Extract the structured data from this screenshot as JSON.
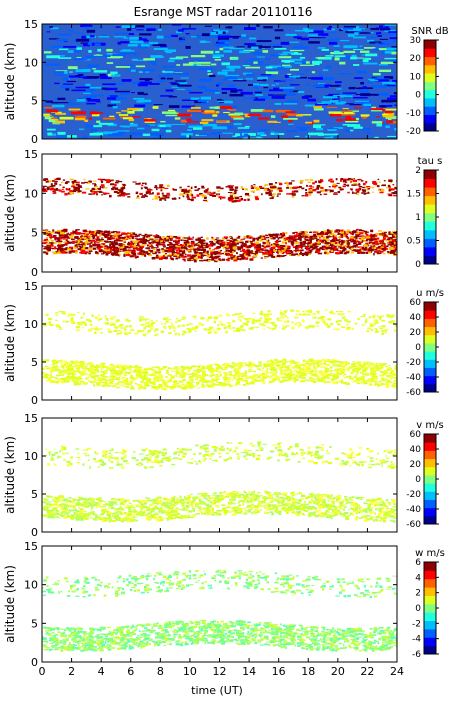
{
  "chart_data": {
    "type": "heatmap",
    "title": "Esrange MST radar 20110116",
    "xlabel": "time (UT)",
    "x_ticks": [
      0,
      2,
      4,
      6,
      8,
      10,
      12,
      14,
      16,
      18,
      20,
      22,
      24
    ],
    "xlim": [
      0,
      24
    ],
    "panels": [
      {
        "ylabel": "altitude (km)",
        "ylim": [
          0,
          15
        ],
        "y_ticks": [
          0,
          5,
          10,
          15
        ],
        "colorbar_label": "SNR dB",
        "colorbar_ticks": [
          -20,
          -10,
          0,
          10,
          20,
          30
        ],
        "colorbar_range": [
          -20,
          30
        ],
        "description_values": {
          "echo_top_km": 15,
          "strong_layer_km": [
            2.5,
            4.0
          ],
          "strong_layer_peak_dB": 25,
          "cirrus_layer_km": [
            9.5,
            11.5
          ],
          "background_dB": -10
        }
      },
      {
        "ylabel": "altitude (km)",
        "ylim": [
          0,
          15
        ],
        "y_ticks": [
          0,
          5,
          10,
          15
        ],
        "colorbar_label": "tau s",
        "colorbar_ticks": [
          0,
          0.5,
          1,
          1.5,
          2
        ],
        "colorbar_range": [
          0,
          2
        ],
        "description_values": {
          "upper_layer_km": [
            9.5,
            11.5
          ],
          "lower_layer_km": [
            2.0,
            5.0
          ],
          "dominant_tau_s": 2
        }
      },
      {
        "ylabel": "altitude (km)",
        "ylim": [
          0,
          15
        ],
        "y_ticks": [
          0,
          5,
          10,
          15
        ],
        "colorbar_label": "u m/s",
        "colorbar_ticks": [
          -60,
          -40,
          -20,
          0,
          20,
          40,
          60
        ],
        "colorbar_range": [
          -60,
          60
        ],
        "description_values": {
          "upper_layer_km": [
            9.0,
            11.5
          ],
          "lower_layer_km": [
            2.0,
            5.0
          ],
          "typical_u_ms": 30
        }
      },
      {
        "ylabel": "altitude (km)",
        "ylim": [
          0,
          15
        ],
        "y_ticks": [
          0,
          5,
          10,
          15
        ],
        "colorbar_label": "v m/s",
        "colorbar_ticks": [
          -60,
          -40,
          -20,
          0,
          20,
          40,
          60
        ],
        "colorbar_range": [
          -60,
          60
        ],
        "description_values": {
          "upper_layer_km": [
            9.0,
            11.5
          ],
          "lower_layer_km": [
            2.0,
            5.0
          ],
          "typical_v_ms": 20
        }
      },
      {
        "ylabel": "altitude (km)",
        "ylim": [
          0,
          15
        ],
        "y_ticks": [
          0,
          5,
          10,
          15
        ],
        "colorbar_label": "w m/s",
        "colorbar_ticks": [
          -6,
          -4,
          -2,
          0,
          2,
          4,
          6
        ],
        "colorbar_range": [
          -6,
          6
        ],
        "description_values": {
          "upper_layer_km": [
            9.0,
            11.5
          ],
          "lower_layer_km": [
            2.0,
            5.0
          ],
          "typical_w_ms": 0.5
        }
      }
    ]
  }
}
